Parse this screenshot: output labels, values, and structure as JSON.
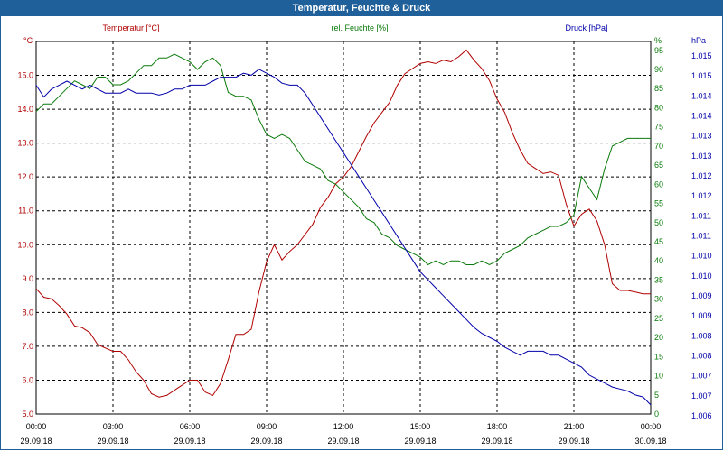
{
  "header": {
    "title": "Temperatur, Feuchte & Druck"
  },
  "chart_data": {
    "type": "line",
    "title": "Temperatur, Feuchte & Druck",
    "colors": {
      "temperature": "#b00000",
      "humidity": "#0a7a0a",
      "pressure": "#0000aa",
      "grid": "#000000",
      "title_bar": "#1f5f9a"
    },
    "x_ticks": [
      {
        "hours": 0,
        "time": "00:00",
        "date": "29.09.18"
      },
      {
        "hours": 3,
        "time": "03:00",
        "date": "29.09.18"
      },
      {
        "hours": 6,
        "time": "06:00",
        "date": "29.09.18"
      },
      {
        "hours": 9,
        "time": "09:00",
        "date": "29.09.18"
      },
      {
        "hours": 12,
        "time": "12:00",
        "date": "29.09.18"
      },
      {
        "hours": 15,
        "time": "15:00",
        "date": "29.09.18"
      },
      {
        "hours": 18,
        "time": "18:00",
        "date": "29.09.18"
      },
      {
        "hours": 21,
        "time": "21:00",
        "date": "29.09.18"
      },
      {
        "hours": 24,
        "time": "00:00",
        "date": "30.09.18"
      }
    ],
    "xlim": [
      0,
      24
    ],
    "axes": {
      "left": {
        "label": "Temperatur [°C]",
        "unit": "°C",
        "ylim": [
          5.0,
          16.0
        ],
        "ticks": [
          "5.0",
          "6.0",
          "7.0",
          "8.0",
          "9.0",
          "10.0",
          "11.0",
          "12.0",
          "13.0",
          "14.0",
          "15.0"
        ]
      },
      "right1": {
        "label": "rel. Feuchte [%]",
        "unit": "%",
        "ylim": [
          0,
          97.3
        ],
        "ticks": [
          "0",
          "5",
          "10",
          "15",
          "20",
          "25",
          "30",
          "35",
          "40",
          "45",
          "50",
          "55",
          "60",
          "65",
          "70",
          "75",
          "80",
          "85",
          "90",
          "95"
        ]
      },
      "right2": {
        "label": "Druck [hPa]",
        "unit": "hPa",
        "ylim": [
          1006.32,
          1015.7
        ],
        "ticks": [
          "1.006",
          "1.007",
          "1.007",
          "1.008",
          "1.008",
          "1.009",
          "1.009",
          "1.010",
          "1.010",
          "1.011",
          "1.011",
          "1.012",
          "1.012",
          "1.013",
          "1.013",
          "1.014",
          "1.014",
          "1.015",
          "1.015"
        ]
      }
    },
    "series": [
      {
        "name": "Temperatur",
        "axis": "left",
        "x": [
          0,
          0.3,
          0.6,
          0.9,
          1.2,
          1.5,
          1.8,
          2.1,
          2.4,
          2.7,
          3.0,
          3.3,
          3.6,
          3.9,
          4.2,
          4.5,
          4.8,
          5.1,
          5.4,
          5.7,
          6.0,
          6.3,
          6.6,
          6.9,
          7.2,
          7.5,
          7.8,
          8.1,
          8.4,
          8.7,
          9.0,
          9.3,
          9.6,
          9.9,
          10.2,
          10.5,
          10.8,
          11.1,
          11.4,
          11.7,
          12.0,
          12.3,
          12.6,
          12.9,
          13.2,
          13.5,
          13.8,
          14.1,
          14.4,
          14.7,
          15.0,
          15.3,
          15.6,
          15.9,
          16.2,
          16.5,
          16.8,
          17.1,
          17.4,
          17.7,
          18.0,
          18.3,
          18.6,
          18.9,
          19.2,
          19.5,
          19.8,
          20.1,
          20.4,
          20.7,
          21.0,
          21.3,
          21.6,
          21.9,
          22.2,
          22.5,
          22.8,
          23.1,
          23.4,
          23.7,
          24.0
        ],
        "values": [
          8.7,
          8.45,
          8.4,
          8.2,
          7.95,
          7.6,
          7.55,
          7.4,
          7.05,
          6.95,
          6.85,
          6.85,
          6.6,
          6.25,
          6.0,
          5.6,
          5.5,
          5.55,
          5.7,
          5.85,
          6.0,
          6.0,
          5.65,
          5.55,
          5.9,
          6.6,
          7.35,
          7.35,
          7.5,
          8.6,
          9.5,
          10.0,
          9.55,
          9.8,
          10.0,
          10.3,
          10.6,
          11.1,
          11.4,
          11.8,
          12.0,
          12.3,
          12.75,
          13.2,
          13.6,
          13.9,
          14.2,
          14.7,
          15.05,
          15.2,
          15.35,
          15.4,
          15.35,
          15.45,
          15.4,
          15.55,
          15.75,
          15.45,
          15.2,
          14.85,
          14.3,
          13.9,
          13.3,
          12.8,
          12.4,
          12.25,
          12.1,
          12.15,
          12.05,
          11.2,
          10.55,
          10.9,
          11.05,
          10.7,
          10.0,
          8.85,
          8.65,
          8.65,
          8.6,
          8.55,
          8.55
        ]
      },
      {
        "name": "rel. Feuchte",
        "axis": "right1",
        "x": [
          0,
          0.3,
          0.6,
          0.9,
          1.2,
          1.5,
          1.8,
          2.1,
          2.4,
          2.7,
          3.0,
          3.3,
          3.6,
          3.9,
          4.2,
          4.5,
          4.8,
          5.1,
          5.4,
          5.7,
          6.0,
          6.3,
          6.6,
          6.9,
          7.2,
          7.5,
          7.8,
          8.1,
          8.4,
          8.7,
          9.0,
          9.3,
          9.6,
          9.9,
          10.2,
          10.5,
          10.8,
          11.1,
          11.4,
          11.7,
          12.0,
          12.3,
          12.6,
          12.9,
          13.2,
          13.5,
          13.8,
          14.1,
          14.4,
          14.7,
          15.0,
          15.3,
          15.6,
          15.9,
          16.2,
          16.5,
          16.8,
          17.1,
          17.4,
          17.7,
          18.0,
          18.3,
          18.6,
          18.9,
          19.2,
          19.5,
          19.8,
          20.1,
          20.4,
          20.7,
          21.0,
          21.3,
          21.6,
          21.9,
          22.2,
          22.5,
          22.8,
          23.1,
          23.4,
          23.7,
          24.0
        ],
        "values": [
          79,
          81,
          81,
          83,
          85,
          87,
          86,
          85,
          88,
          88,
          86,
          86,
          87,
          89,
          91,
          91,
          93,
          93,
          94,
          93,
          92,
          90,
          92,
          93,
          91,
          84,
          83,
          83,
          82,
          77,
          73,
          72,
          73,
          72,
          69,
          66,
          65,
          64,
          61,
          60,
          58,
          56,
          54,
          51,
          50,
          47,
          46,
          44,
          43,
          42,
          41,
          39,
          40,
          39,
          40,
          40,
          39,
          39,
          40,
          39,
          40,
          42,
          43,
          44,
          46,
          47,
          48,
          49,
          49,
          50,
          52,
          62,
          59,
          56,
          64,
          70,
          71,
          72,
          72,
          72,
          72
        ]
      },
      {
        "name": "Druck",
        "axis": "right2",
        "x": [
          0,
          0.3,
          0.6,
          0.9,
          1.2,
          1.5,
          1.8,
          2.1,
          2.4,
          2.7,
          3.0,
          3.3,
          3.6,
          3.9,
          4.2,
          4.5,
          4.8,
          5.1,
          5.4,
          5.7,
          6.0,
          6.3,
          6.6,
          6.9,
          7.2,
          7.5,
          7.8,
          8.1,
          8.4,
          8.7,
          9.0,
          9.3,
          9.6,
          9.9,
          10.2,
          10.5,
          10.8,
          11.1,
          11.4,
          11.7,
          12.0,
          12.3,
          12.6,
          12.9,
          13.2,
          13.5,
          13.8,
          14.1,
          14.4,
          14.7,
          15.0,
          15.3,
          15.6,
          15.9,
          16.2,
          16.5,
          16.8,
          17.1,
          17.4,
          17.7,
          18.0,
          18.3,
          18.6,
          18.9,
          19.2,
          19.5,
          19.8,
          20.1,
          20.4,
          20.7,
          21.0,
          21.3,
          21.6,
          21.9,
          22.2,
          22.5,
          22.8,
          23.1,
          23.4,
          23.7,
          24.0
        ],
        "values": [
          1014.6,
          1014.3,
          1014.5,
          1014.6,
          1014.7,
          1014.6,
          1014.5,
          1014.6,
          1014.5,
          1014.4,
          1014.4,
          1014.4,
          1014.5,
          1014.4,
          1014.4,
          1014.4,
          1014.35,
          1014.4,
          1014.5,
          1014.5,
          1014.6,
          1014.6,
          1014.6,
          1014.7,
          1014.8,
          1014.8,
          1014.8,
          1014.9,
          1014.85,
          1015.0,
          1014.9,
          1014.8,
          1014.65,
          1014.6,
          1014.6,
          1014.4,
          1014.1,
          1013.8,
          1013.5,
          1013.2,
          1012.9,
          1012.6,
          1012.3,
          1012.0,
          1011.7,
          1011.4,
          1011.1,
          1010.8,
          1010.5,
          1010.2,
          1009.9,
          1009.7,
          1009.5,
          1009.3,
          1009.1,
          1008.9,
          1008.7,
          1008.5,
          1008.35,
          1008.25,
          1008.15,
          1008.0,
          1007.9,
          1007.8,
          1007.9,
          1007.9,
          1007.9,
          1007.8,
          1007.8,
          1007.7,
          1007.6,
          1007.5,
          1007.3,
          1007.2,
          1007.1,
          1007.0,
          1006.95,
          1006.9,
          1006.8,
          1006.75,
          1006.55
        ]
      }
    ]
  }
}
